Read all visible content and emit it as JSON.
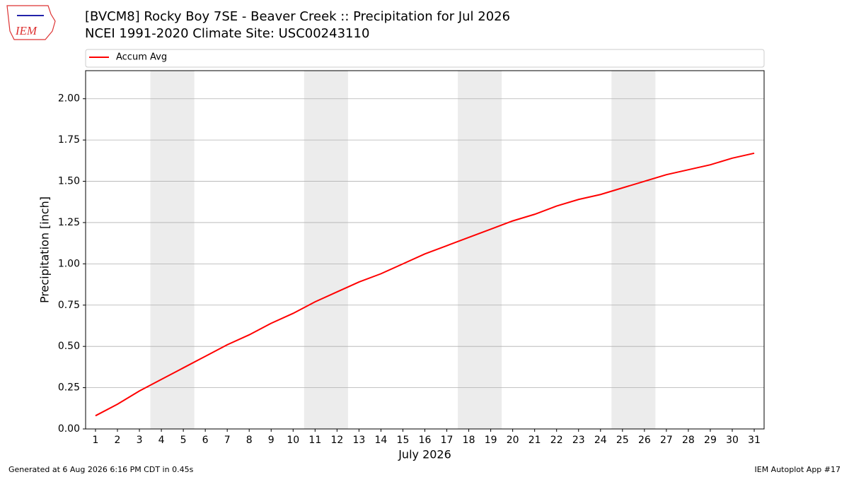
{
  "logo": "IEM",
  "footer": {
    "left": "Generated at 6 Aug 2026 6:16 PM CDT in 0.45s",
    "right": "IEM Autoplot App #17"
  },
  "chart_data": {
    "type": "line",
    "title": "[BVCM8] Rocky Boy 7SE - Beaver Creek :: Precipitation for Jul 2026",
    "subtitle": "NCEI 1991-2020 Climate Site: USC00243110",
    "x_label": "July 2026",
    "y_label": "Precipitation [inch]",
    "x": [
      1,
      2,
      3,
      4,
      5,
      6,
      7,
      8,
      9,
      10,
      11,
      12,
      13,
      14,
      15,
      16,
      17,
      18,
      19,
      20,
      21,
      22,
      23,
      24,
      25,
      26,
      27,
      28,
      29,
      30,
      31
    ],
    "series": [
      {
        "name": "Accum Avg",
        "color": "#ff0000",
        "values": [
          0.08,
          0.15,
          0.23,
          0.3,
          0.37,
          0.44,
          0.51,
          0.57,
          0.64,
          0.7,
          0.77,
          0.83,
          0.89,
          0.94,
          1.0,
          1.06,
          1.11,
          1.16,
          1.21,
          1.26,
          1.3,
          1.35,
          1.39,
          1.42,
          1.46,
          1.5,
          1.54,
          1.57,
          1.6,
          1.64,
          1.67
        ]
      }
    ],
    "xlim": [
      0.55,
      31.45
    ],
    "ylim": [
      0,
      2.17
    ],
    "xticks": [
      1,
      2,
      3,
      4,
      5,
      6,
      7,
      8,
      9,
      10,
      11,
      12,
      13,
      14,
      15,
      16,
      17,
      18,
      19,
      20,
      21,
      22,
      23,
      24,
      25,
      26,
      27,
      28,
      29,
      30,
      31
    ],
    "yticks": [
      {
        "value": 0,
        "label": "0.00"
      },
      {
        "value": 0.25,
        "label": "0.25"
      },
      {
        "value": 0.5,
        "label": "0.50"
      },
      {
        "value": 0.75,
        "label": "0.75"
      },
      {
        "value": 1,
        "label": "1.00"
      },
      {
        "value": 1.25,
        "label": "1.25"
      },
      {
        "value": 1.5,
        "label": "1.50"
      },
      {
        "value": 1.75,
        "label": "1.75"
      },
      {
        "value": 2,
        "label": "2.00"
      }
    ],
    "shaded_spans": [
      [
        3.5,
        5.5
      ],
      [
        10.5,
        12.5
      ],
      [
        17.5,
        19.5
      ],
      [
        24.5,
        26.5
      ]
    ],
    "shade_color": "#ececec",
    "grid": true,
    "legend": "top"
  }
}
